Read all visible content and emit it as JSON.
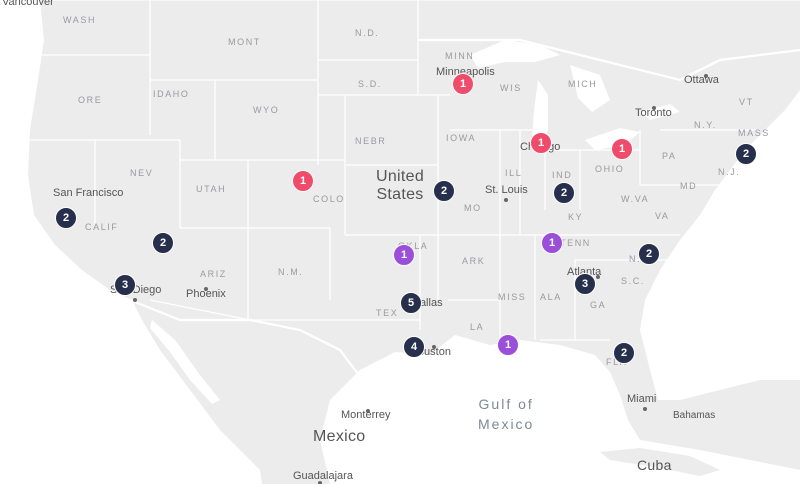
{
  "colors": {
    "land": "#ececed",
    "water": "#ffffff",
    "border": "#ffffff",
    "navy": "#26304d",
    "red": "#ef4c6c",
    "purple": "#9b4fd8"
  },
  "states": {
    "wash": "WASH",
    "mont": "MONT",
    "nd": "N.D.",
    "minn": "MINN",
    "ore": "ORE",
    "idaho": "IDAHO",
    "sd": "S.D.",
    "wis": "WIS",
    "mich": "MICH",
    "wyo": "WYO",
    "iowa": "IOWA",
    "nebr": "NEBR",
    "nev": "NEV",
    "utah": "UTAH",
    "calif": "CALIF",
    "ill": "ILL",
    "ind": "IND",
    "ohio": "OHIO",
    "pa": "PA",
    "ny": "N.Y.",
    "vt": "VT",
    "mass": "MASS",
    "nj": "N.J.",
    "md": "MD",
    "wva": "W.VA",
    "va": "VA",
    "ky": "KY",
    "mo": "MO",
    "nm": "N.M.",
    "ariz": "ARIZ",
    "ark": "ARK",
    "tenn": "TENN",
    "nc": "N.C.",
    "sc": "S.C.",
    "miss": "MISS",
    "ala": "ALA",
    "ga": "GA",
    "tex": "TEX",
    "la": "LA",
    "colo": "COLO",
    "okla": "OKLA",
    "fla": "FLA"
  },
  "cities": {
    "vancouver": "Vancouver",
    "minneapolis": "Minneapolis",
    "ottawa": "Ottawa",
    "toronto": "Toronto",
    "chicago": "Chicago",
    "san_francisco": "San Francisco",
    "st_louis": "St. Louis",
    "atlanta": "Atlanta",
    "san_diego": "San Diego",
    "phoenix": "Phoenix",
    "dallas": "Dallas",
    "houston": "Houston",
    "monterrey": "Monterrey",
    "guadalajara": "Guadalajara",
    "miami": "Miami",
    "bahamas": "Bahamas"
  },
  "countries": {
    "us_line1": "United",
    "us_line2": "States",
    "mexico": "Mexico",
    "cuba": "Cuba"
  },
  "water": {
    "gulf_line1": "Gulf of",
    "gulf_line2": "Mexico"
  },
  "markers": [
    {
      "id": "minneapolis",
      "count": "1",
      "color": "red"
    },
    {
      "id": "chicago",
      "count": "1",
      "color": "red"
    },
    {
      "id": "ohio",
      "count": "1",
      "color": "red"
    },
    {
      "id": "colorado",
      "count": "1",
      "color": "red"
    },
    {
      "id": "new-jersey",
      "count": "2",
      "color": "navy"
    },
    {
      "id": "kansas-city",
      "count": "2",
      "color": "navy"
    },
    {
      "id": "indiana",
      "count": "2",
      "color": "navy"
    },
    {
      "id": "san-francisco",
      "count": "2",
      "color": "navy"
    },
    {
      "id": "las-vegas",
      "count": "2",
      "color": "navy"
    },
    {
      "id": "tennessee",
      "count": "1",
      "color": "purple"
    },
    {
      "id": "oklahoma",
      "count": "1",
      "color": "purple"
    },
    {
      "id": "north-carolina",
      "count": "2",
      "color": "navy"
    },
    {
      "id": "san-diego",
      "count": "3",
      "color": "navy"
    },
    {
      "id": "atlanta",
      "count": "3",
      "color": "navy"
    },
    {
      "id": "dallas",
      "count": "5",
      "color": "navy"
    },
    {
      "id": "houston",
      "count": "4",
      "color": "navy"
    },
    {
      "id": "new-orleans",
      "count": "1",
      "color": "purple"
    },
    {
      "id": "florida",
      "count": "2",
      "color": "navy"
    }
  ]
}
